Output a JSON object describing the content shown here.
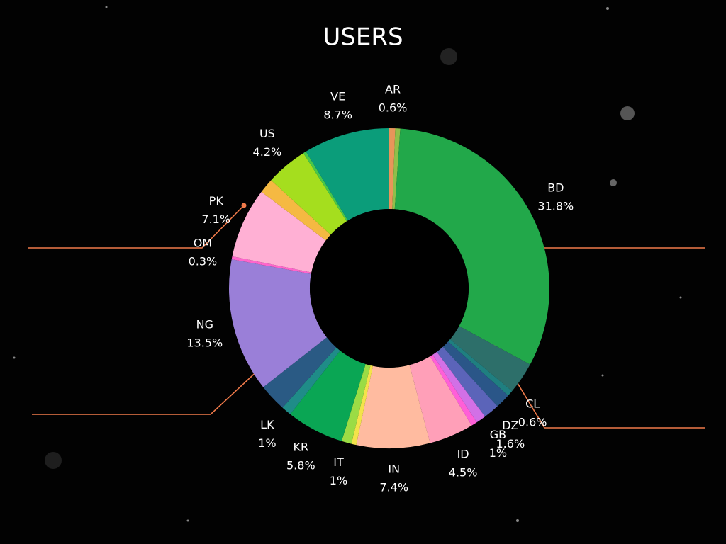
{
  "chart_data": {
    "type": "pie",
    "title": "USERS",
    "categories": [
      "AR",
      null,
      "BD",
      null,
      "CL",
      null,
      "DZ",
      "GB",
      null,
      "ID",
      "IN",
      null,
      "IT",
      "KR",
      "LK",
      null,
      "NG",
      "OM",
      "PK",
      null,
      "US",
      null,
      "VE"
    ],
    "values": [
      0.6,
      0.5,
      31.8,
      3.2,
      0.6,
      1.5,
      1.6,
      1,
      0.6,
      4.5,
      7.4,
      0.5,
      1,
      5.8,
      1,
      2.8,
      13.5,
      0.3,
      7.1,
      1.5,
      4.2,
      0.3,
      8.7
    ],
    "value_labels": [
      "0.6%",
      null,
      "31.8%",
      null,
      "0.6%",
      null,
      "1.6%",
      "1%",
      null,
      "4.5%",
      "7.4%",
      null,
      "1%",
      "5.8%",
      "1%",
      null,
      "13.5%",
      "0.3%",
      "7.1%",
      null,
      "4.2%",
      null,
      "8.7%"
    ],
    "colors": [
      "#e8955a",
      "#8fbf4a",
      "#22a84a",
      "#2d6f6a",
      "#1f7f80",
      "#2a5688",
      "#5b64b9",
      "#d270e6",
      "#ff5fd8",
      "#ff9fb8",
      "#ffbba0",
      "#f3e34a",
      "#9bdc45",
      "#0aa654",
      "#1f8c88",
      "#2a5a84",
      "#9a7fd8",
      "#ff66cc",
      "#ffb0d4",
      "#f5b942",
      "#a5de1e",
      "#48c84a",
      "#0b9d7a"
    ],
    "donut": true
  }
}
